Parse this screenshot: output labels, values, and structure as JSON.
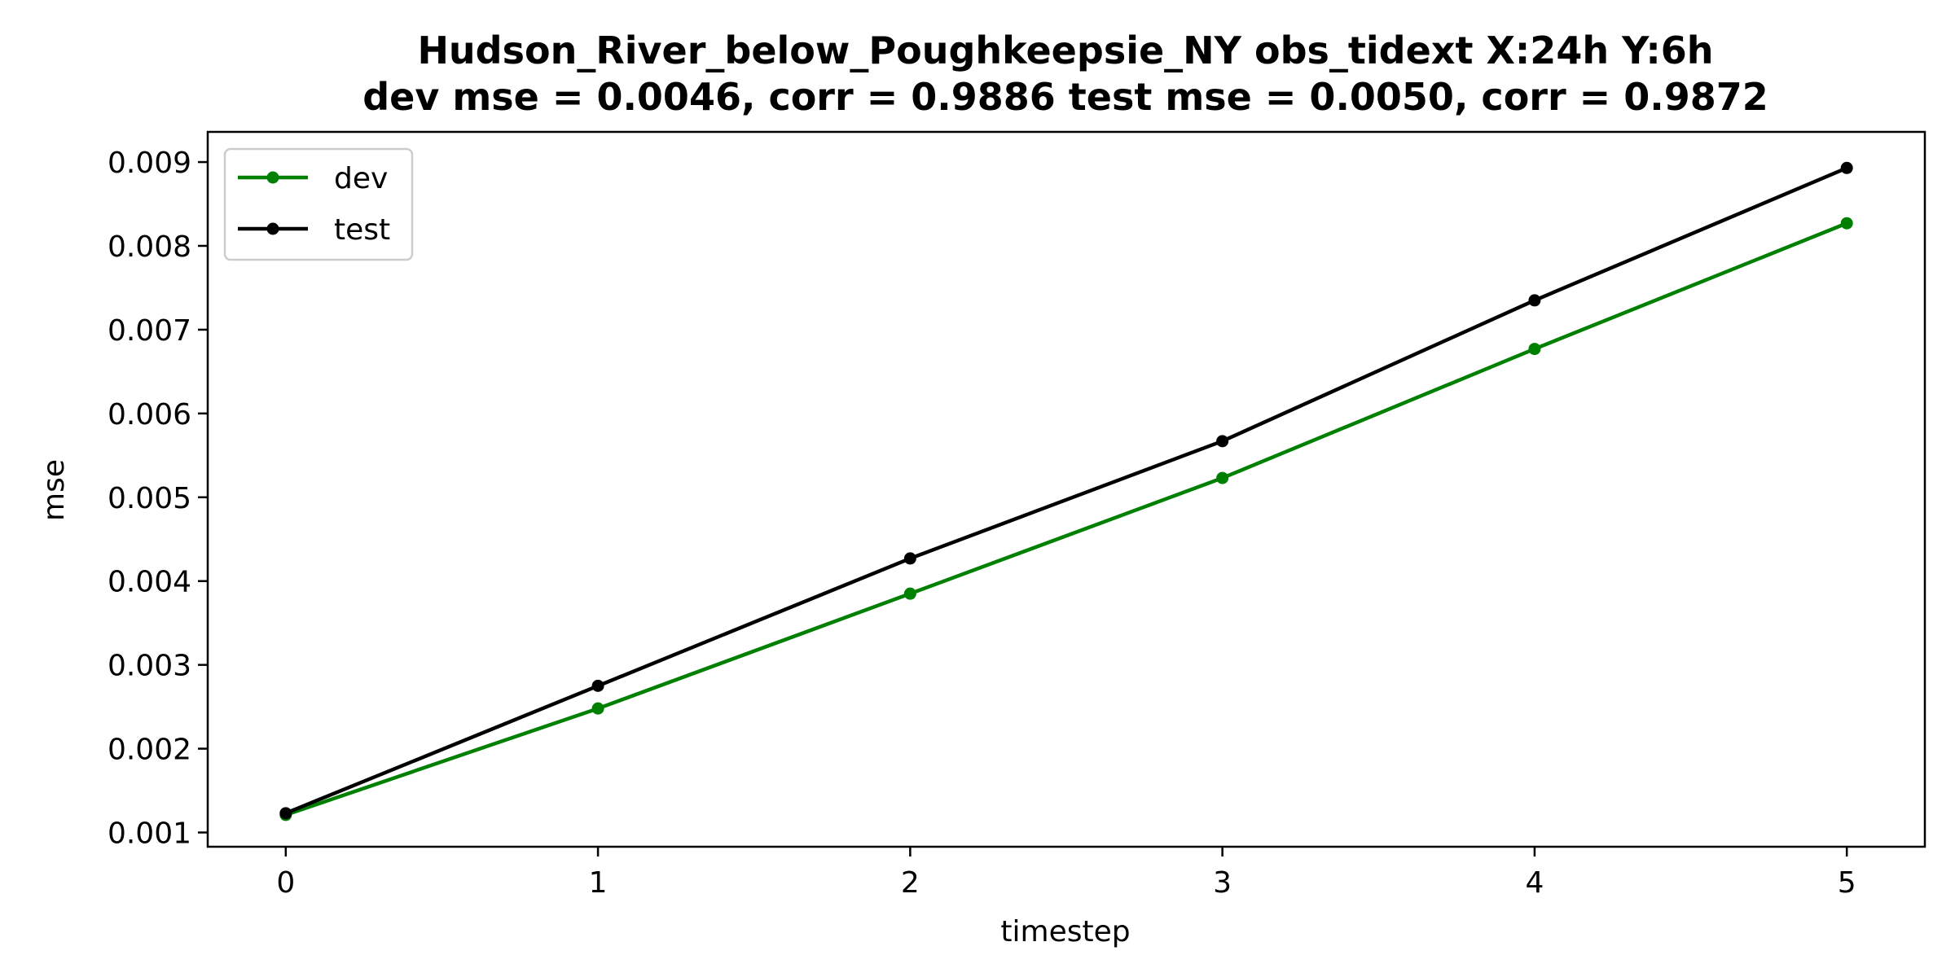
{
  "chart_data": {
    "type": "line",
    "title_line1": "Hudson_River_below_Poughkeepsie_NY   obs_tidext   X:24h   Y:6h",
    "title_line2": "dev mse = 0.0046, corr = 0.9886   test mse = 0.0050, corr = 0.9872",
    "xlabel": "timestep",
    "ylabel": "mse",
    "x": [
      0,
      1,
      2,
      3,
      4,
      5
    ],
    "x_tick_labels": [
      "0",
      "1",
      "2",
      "3",
      "4",
      "5"
    ],
    "y_tick_values": [
      0.001,
      0.002,
      0.003,
      0.004,
      0.005,
      0.006,
      0.007,
      0.008,
      0.009
    ],
    "y_tick_labels": [
      "0.001",
      "0.002",
      "0.003",
      "0.004",
      "0.005",
      "0.006",
      "0.007",
      "0.008",
      "0.009"
    ],
    "xlim": [
      -0.25,
      5.25
    ],
    "ylim": [
      0.00083,
      0.00936
    ],
    "grid": false,
    "legend_position": "upper-left",
    "series": [
      {
        "name": "dev",
        "color": "#008000",
        "marker": "dot",
        "values": [
          0.00121,
          0.00248,
          0.00385,
          0.00523,
          0.00677,
          0.00827
        ]
      },
      {
        "name": "test",
        "color": "#000000",
        "marker": "dot",
        "values": [
          0.00123,
          0.00275,
          0.00427,
          0.00567,
          0.00735,
          0.00893
        ]
      }
    ]
  }
}
